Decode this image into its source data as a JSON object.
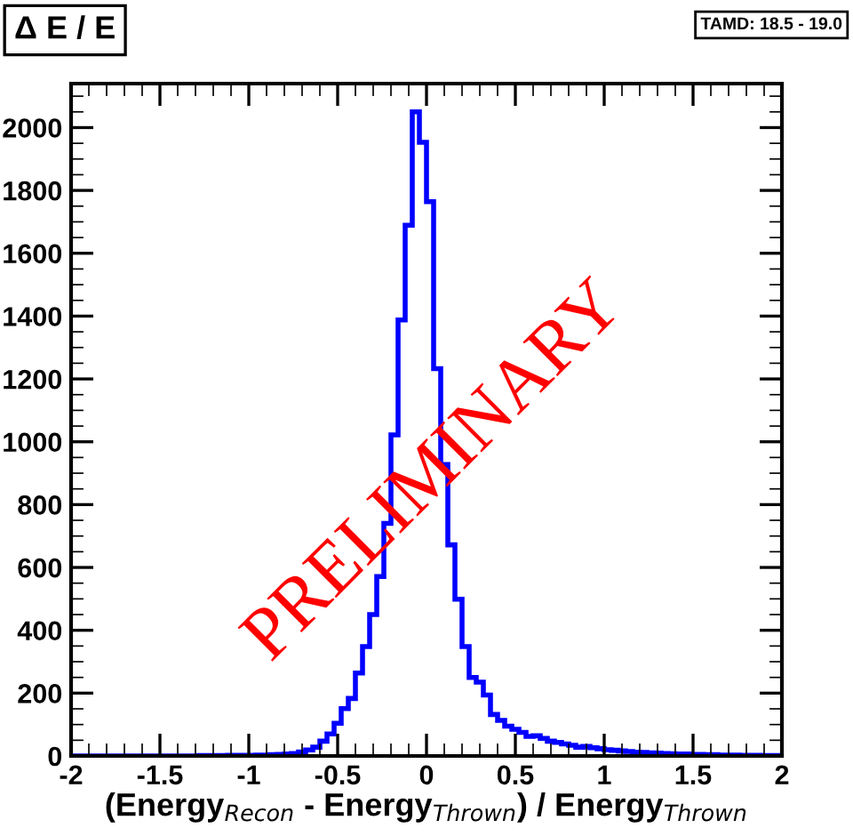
{
  "chart_data": {
    "type": "histogram",
    "title": "Δ E / E",
    "xlabel": "(Energy$_{Recon}$ - Energy$_{Thrown}$) / Energy$_{Thrown}$",
    "annotations": [
      "TAMD: 18.5 - 19.0",
      "PRELIMINARY"
    ],
    "bins": [
      -2,
      -1.96,
      -1.92,
      -1.88,
      -1.84,
      -1.8,
      -1.76,
      -1.72,
      -1.68,
      -1.64,
      -1.6,
      -1.56,
      -1.52,
      -1.48,
      -1.44,
      -1.4,
      -1.36,
      -1.32,
      -1.28,
      -1.24,
      -1.2,
      -1.16,
      -1.12,
      -1.08,
      -1.04,
      -1,
      -0.96,
      -0.92,
      -0.88,
      -0.84,
      -0.8,
      -0.76,
      -0.72,
      -0.68,
      -0.64,
      -0.6,
      -0.56,
      -0.52,
      -0.48,
      -0.44,
      -0.4,
      -0.36,
      -0.32,
      -0.28,
      -0.24,
      -0.2,
      -0.16,
      -0.12,
      -0.08,
      -0.04,
      0,
      0.04,
      0.08,
      0.12,
      0.16,
      0.2,
      0.24,
      0.28,
      0.32,
      0.36,
      0.4,
      0.44,
      0.48,
      0.52,
      0.56,
      0.6,
      0.64,
      0.68,
      0.72,
      0.76,
      0.8,
      0.84,
      0.88,
      0.92,
      0.96,
      1,
      1.04,
      1.08,
      1.12,
      1.16,
      1.2,
      1.24,
      1.28,
      1.32,
      1.36,
      1.4,
      1.44,
      1.48,
      1.52,
      1.56,
      1.6,
      1.64,
      1.68,
      1.72,
      1.76,
      1.8,
      1.84,
      1.88,
      1.92,
      1.96,
      2
    ],
    "values": [
      0,
      0,
      0,
      0,
      0,
      0,
      0,
      0,
      0,
      0,
      0,
      0,
      0,
      0,
      0,
      0,
      0,
      0,
      1,
      1,
      1,
      1,
      2,
      2,
      2,
      2,
      3,
      3,
      4,
      5,
      6,
      8,
      13,
      19,
      28,
      47,
      70,
      104,
      151,
      183,
      264,
      348,
      450,
      571,
      740,
      1022,
      1388,
      1689,
      2050,
      1953,
      1764,
      1233,
      928,
      672,
      499,
      348,
      250,
      235,
      194,
      132,
      113,
      95,
      85,
      75,
      62,
      64,
      56,
      47,
      43,
      38,
      34,
      28,
      30,
      26,
      23,
      20,
      18,
      16,
      14,
      12,
      11,
      10,
      9,
      8,
      7,
      6,
      6,
      5,
      5,
      4,
      4,
      3,
      3,
      3,
      2,
      2,
      2,
      1,
      1,
      1
    ],
    "color": "#0000ff",
    "xlim": [
      -2,
      2
    ],
    "ylim": [
      0,
      2140
    ],
    "xticks": [
      -2,
      -1.5,
      -1,
      -0.5,
      0,
      0.5,
      1,
      1.5,
      2
    ],
    "yticks": [
      0,
      200,
      400,
      600,
      800,
      1000,
      1200,
      1400,
      1600,
      1800,
      2000
    ],
    "grid": false,
    "legend": false
  }
}
